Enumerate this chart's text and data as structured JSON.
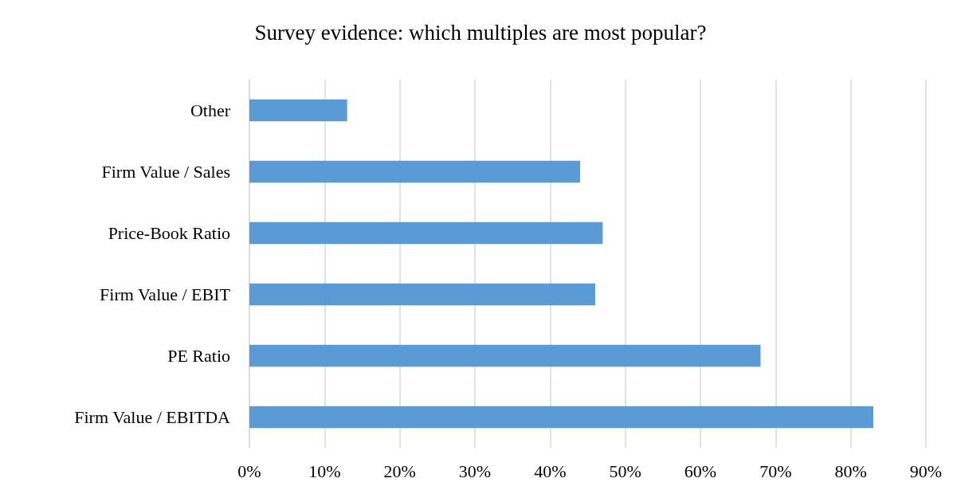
{
  "chart_data": {
    "type": "bar",
    "orientation": "horizontal",
    "title": "Survey evidence: which multiples are most popular?",
    "categories": [
      "Other",
      "Firm Value / Sales",
      "Price-Book Ratio",
      "Firm Value / EBIT",
      "PE Ratio",
      "Firm Value / EBITDA"
    ],
    "values": [
      13,
      44,
      47,
      46,
      68,
      83
    ],
    "color": "#5b9bd5",
    "xlim": [
      0,
      90
    ],
    "xticks": [
      {
        "value": 0,
        "label": "0%"
      },
      {
        "value": 10,
        "label": "10%"
      },
      {
        "value": 20,
        "label": "20%"
      },
      {
        "value": 30,
        "label": "30%"
      },
      {
        "value": 40,
        "label": "40%"
      },
      {
        "value": 50,
        "label": "50%"
      },
      {
        "value": 60,
        "label": "60%"
      },
      {
        "value": 70,
        "label": "70%"
      },
      {
        "value": 80,
        "label": "80%"
      },
      {
        "value": 90,
        "label": "90%"
      }
    ],
    "grid": "x"
  }
}
